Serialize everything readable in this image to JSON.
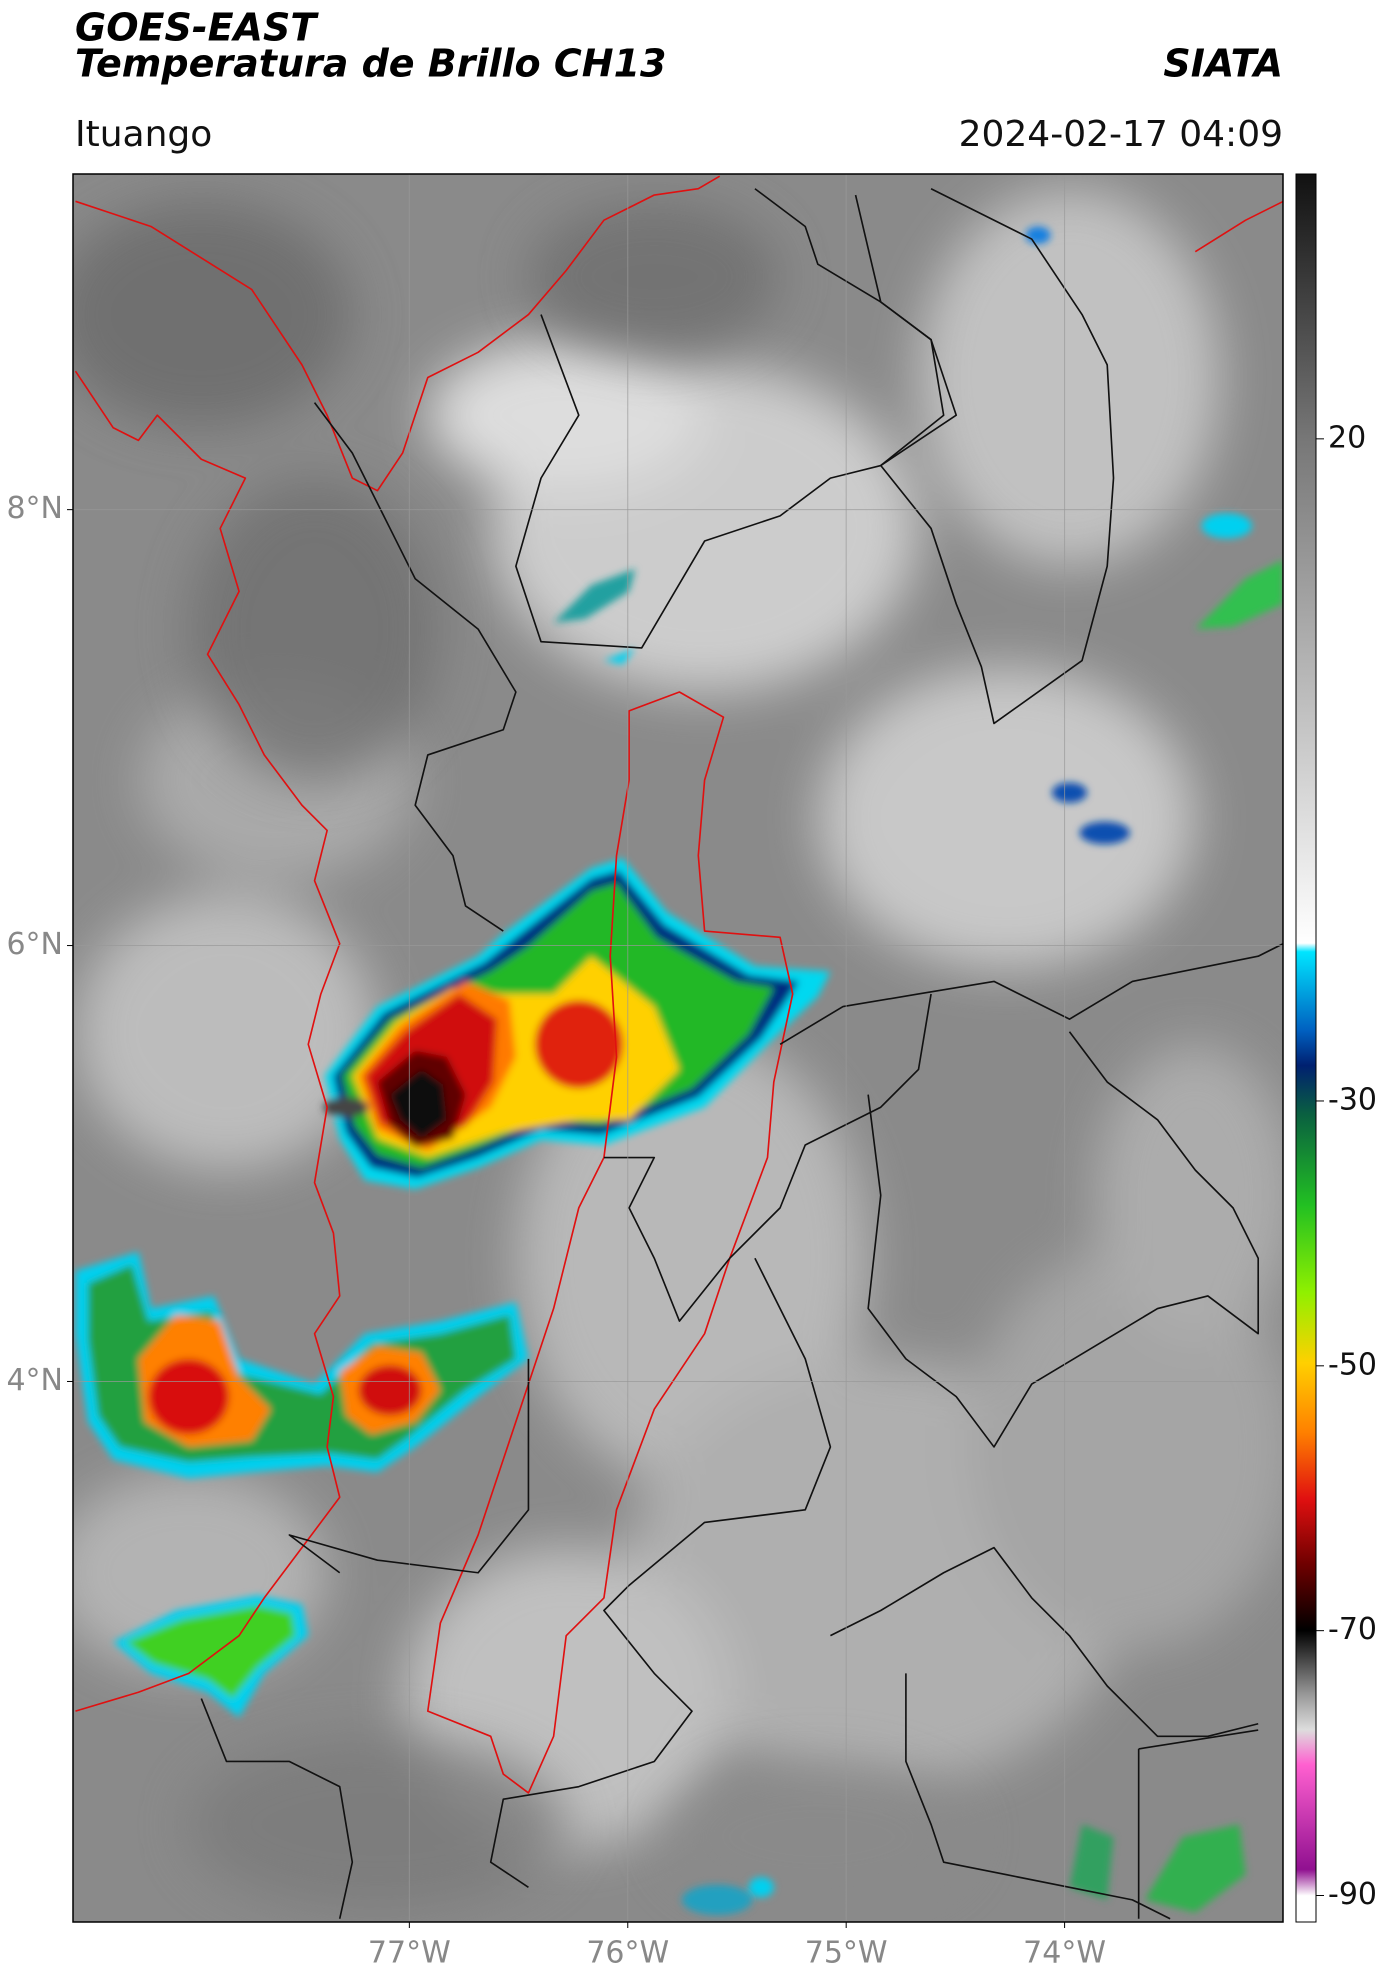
{
  "header": {
    "satellite": "GOES-EAST",
    "product": "Temperatura de Brillo CH13",
    "agency": "SIATA",
    "location": "Ituango",
    "datetime": "2024-02-17 04:09"
  },
  "map": {
    "lon_range": [
      -78.54,
      -73.0
    ],
    "lat_range": [
      1.52,
      9.54
    ],
    "lat_ticks": [
      {
        "value": 8,
        "label": "8°N"
      },
      {
        "value": 6,
        "label": "6°N"
      },
      {
        "value": 4,
        "label": "4°N"
      }
    ],
    "lon_ticks": [
      {
        "value": -77,
        "label": "77°W"
      },
      {
        "value": -76,
        "label": "76°W"
      },
      {
        "value": -75,
        "label": "75°W"
      },
      {
        "value": -74,
        "label": "74°W"
      }
    ],
    "grid": true
  },
  "colorbar": {
    "lim": [
      -92,
      40
    ],
    "ticks": [
      20,
      -30,
      -50,
      -70,
      -90
    ]
  }
}
